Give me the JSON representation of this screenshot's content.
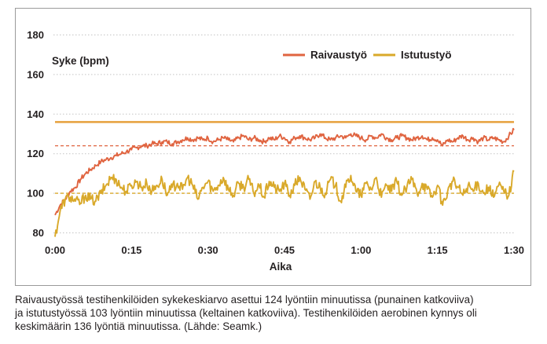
{
  "chart_data": {
    "type": "line",
    "xlabel": "Aika",
    "ylabel": "Syke (bpm)",
    "xlim": [
      0,
      90
    ],
    "ylim": [
      77,
      183
    ],
    "x_ticks": [
      {
        "value": 0,
        "label": "0:00"
      },
      {
        "value": 15,
        "label": "0:15"
      },
      {
        "value": 30,
        "label": "0:30"
      },
      {
        "value": 45,
        "label": "0:45"
      },
      {
        "value": 60,
        "label": "1:00"
      },
      {
        "value": 75,
        "label": "1:15"
      },
      {
        "value": 90,
        "label": "1:30"
      }
    ],
    "y_ticks": [
      80,
      100,
      120,
      140,
      160,
      180
    ],
    "grid": "horizontal dotted",
    "legend_position": "top-right",
    "series": [
      {
        "name": "Raivaustyö",
        "color": "#e06440",
        "x": [
          0,
          1,
          2,
          3,
          4,
          5,
          6,
          7,
          8,
          9,
          10,
          11,
          12,
          13,
          14,
          15,
          16,
          17,
          18,
          19,
          20,
          21,
          22,
          23,
          24,
          25,
          26,
          27,
          28,
          29,
          30,
          31,
          32,
          33,
          34,
          35,
          36,
          37,
          38,
          39,
          40,
          41,
          42,
          43,
          44,
          45,
          46,
          47,
          48,
          49,
          50,
          51,
          52,
          53,
          54,
          55,
          56,
          57,
          58,
          59,
          60,
          61,
          62,
          63,
          64,
          65,
          66,
          67,
          68,
          69,
          70,
          71,
          72,
          73,
          74,
          75,
          76,
          77,
          78,
          79,
          80,
          81,
          82,
          83,
          84,
          85,
          86,
          87,
          88,
          89,
          90
        ],
        "values": [
          89,
          94,
          97,
          101,
          103,
          107,
          110,
          112,
          114,
          116,
          117,
          118,
          119,
          120,
          121,
          122,
          123,
          124,
          124,
          125,
          125,
          126,
          126,
          125,
          126,
          127,
          128,
          127,
          128,
          127,
          128,
          126,
          127,
          128,
          127,
          126,
          128,
          129,
          127,
          128,
          127,
          126,
          128,
          127,
          129,
          128,
          126,
          128,
          129,
          128,
          127,
          128,
          130,
          128,
          127,
          128,
          129,
          128,
          130,
          129,
          128,
          127,
          129,
          128,
          130,
          128,
          127,
          128,
          129,
          128,
          127,
          128,
          129,
          127,
          128,
          127,
          124,
          127,
          126,
          128,
          129,
          127,
          128,
          126,
          128,
          127,
          128,
          127,
          126,
          129,
          132
        ]
      },
      {
        "name": "Istutustyö",
        "color": "#d9a92a",
        "x": [
          0,
          1,
          2,
          3,
          4,
          5,
          6,
          7,
          8,
          9,
          10,
          11,
          12,
          13,
          14,
          15,
          16,
          17,
          18,
          19,
          20,
          21,
          22,
          23,
          24,
          25,
          26,
          27,
          28,
          29,
          30,
          31,
          32,
          33,
          34,
          35,
          36,
          37,
          38,
          39,
          40,
          41,
          42,
          43,
          44,
          45,
          46,
          47,
          48,
          49,
          50,
          51,
          52,
          53,
          54,
          55,
          56,
          57,
          58,
          59,
          60,
          61,
          62,
          63,
          64,
          65,
          66,
          67,
          68,
          69,
          70,
          71,
          72,
          73,
          74,
          75,
          76,
          77,
          78,
          79,
          80,
          81,
          82,
          83,
          84,
          85,
          86,
          87,
          88,
          89,
          90
        ],
        "values": [
          78,
          91,
          97,
          98,
          96,
          95,
          99,
          97,
          96,
          100,
          104,
          108,
          107,
          103,
          101,
          104,
          106,
          103,
          105,
          101,
          104,
          107,
          99,
          103,
          105,
          102,
          108,
          104,
          97,
          103,
          106,
          101,
          104,
          108,
          102,
          99,
          105,
          103,
          107,
          100,
          104,
          98,
          106,
          103,
          101,
          105,
          99,
          104,
          108,
          102,
          97,
          106,
          103,
          100,
          107,
          104,
          96,
          103,
          109,
          101,
          99,
          105,
          102,
          108,
          98,
          104,
          101,
          106,
          99,
          103,
          107,
          100,
          105,
          102,
          98,
          104,
          94,
          101,
          106,
          103,
          99,
          104,
          101,
          105,
          100,
          103,
          98,
          104,
          101,
          99,
          111
        ]
      }
    ],
    "reference_lines": [
      {
        "value": 136,
        "color": "#e6a03c",
        "style": "solid"
      },
      {
        "value": 124,
        "color": "#e06440",
        "style": "dashed"
      },
      {
        "value": 100,
        "color": "#d9a92a",
        "style": "dashed"
      }
    ]
  },
  "caption": [
    "Raivaustyössä testihenkilöiden sykekeskiarvo asettui 124 lyöntiin minuutissa (punainen katkoviiva)",
    "ja istutustyössä 103 lyöntiin minuutissa (keltainen katkoviiva). Testihenkilöiden aerobinen kynnys oli",
    "keskimäärin 136 lyöntiä minuutissa. (Lähde: Seamk.)"
  ]
}
